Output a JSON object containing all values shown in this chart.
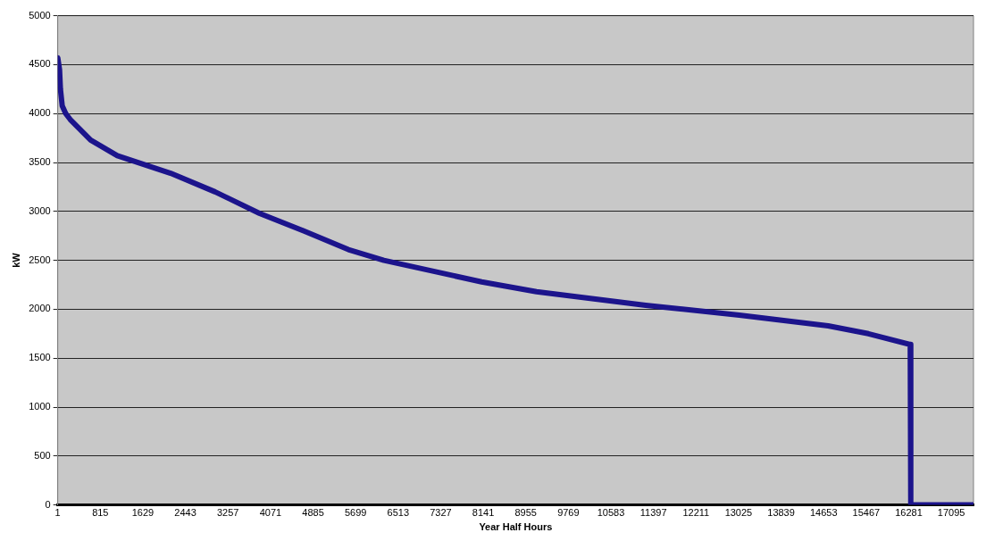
{
  "chart_data": {
    "type": "line",
    "xlabel": "Year Half Hours",
    "ylabel": "kW",
    "x": [
      1,
      35,
      52,
      86,
      154,
      239,
      630,
      1140,
      2160,
      3010,
      3860,
      4711,
      5561,
      6240,
      8110,
      9160,
      11250,
      13040,
      14740,
      15510,
      16310,
      16320,
      17520
    ],
    "series": [
      {
        "color": "#1c148c",
        "values": [
          4570,
          4450,
          4250,
          4080,
          4000,
          3940,
          3730,
          3570,
          3390,
          3200,
          2980,
          2800,
          2610,
          2500,
          2280,
          2180,
          2040,
          1940,
          1830,
          1750,
          1640,
          0,
          0
        ]
      }
    ],
    "xlim": [
      1,
      17520
    ],
    "xticks": [
      1,
      815,
      1629,
      2443,
      3257,
      4071,
      4885,
      5699,
      6513,
      7327,
      8141,
      8955,
      9769,
      10583,
      11397,
      12211,
      13025,
      13839,
      14653,
      15467,
      16281,
      17095
    ],
    "ylim": [
      0,
      5000
    ],
    "yticks": [
      0,
      500,
      1000,
      1500,
      2000,
      2500,
      3000,
      3500,
      4000,
      4500,
      5000
    ],
    "grid": "y",
    "legend": false
  }
}
